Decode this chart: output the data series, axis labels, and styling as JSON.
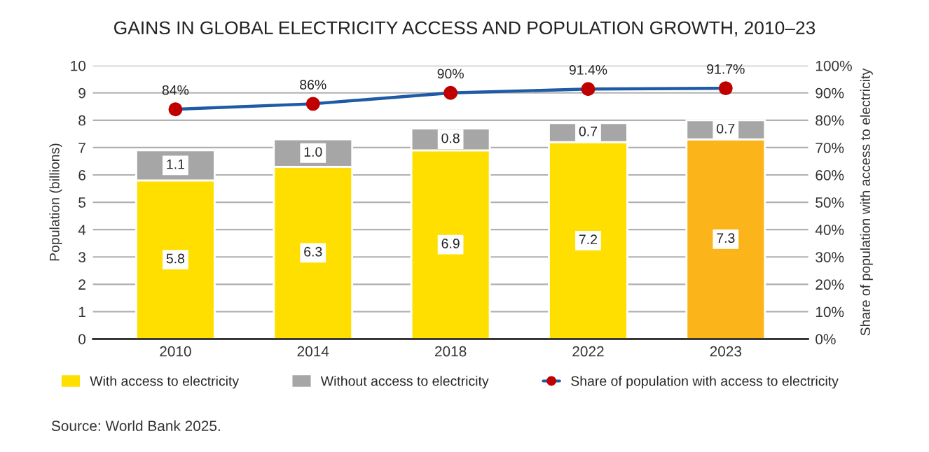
{
  "chart_data": {
    "type": "bar",
    "title": "GAINS IN GLOBAL ELECTRICITY ACCESS AND POPULATION GROWTH, 2010–23",
    "categories": [
      "2010",
      "2014",
      "2018",
      "2022",
      "2023"
    ],
    "stacked": true,
    "series": [
      {
        "name": "With access to electricity",
        "color": "#ffdf00",
        "colors": [
          "#ffdf00",
          "#ffdf00",
          "#ffdf00",
          "#ffdf00",
          "#fbb41a"
        ],
        "values": [
          5.8,
          6.3,
          6.9,
          7.2,
          7.3
        ],
        "value_labels": [
          "5.8",
          "6.3",
          "6.9",
          "7.2",
          "7.3"
        ]
      },
      {
        "name": "Without access to electricity",
        "color": "#a6a6a6",
        "values": [
          1.1,
          1.0,
          0.8,
          0.7,
          0.7
        ],
        "value_labels": [
          "1.1",
          "1.0",
          "0.8",
          "0.7",
          "0.7"
        ]
      },
      {
        "name": "Share of population with access to electricity",
        "type": "line",
        "axis": "y2",
        "color": "#1f5aa6",
        "colors": [
          "#c00000",
          "#c00000",
          "#c00000",
          "#c00000",
          "#c00000"
        ],
        "marker": "circle",
        "values": [
          84,
          86,
          90,
          91.4,
          91.7
        ],
        "value_labels": [
          "84%",
          "86%",
          "90%",
          "91.4%",
          "91.7%"
        ]
      }
    ],
    "ylabel": "Population (billions)",
    "y2label": "Share of population with access to electricity",
    "ylim": [
      0,
      10
    ],
    "yticks": [
      0,
      1,
      2,
      3,
      4,
      5,
      6,
      7,
      8,
      9,
      10
    ],
    "y2lim": [
      0,
      100
    ],
    "y2ticks": [
      {
        "value": 0,
        "label": "0%"
      },
      {
        "value": 10,
        "label": "10%"
      },
      {
        "value": 20,
        "label": "20%"
      },
      {
        "value": 30,
        "label": "30%"
      },
      {
        "value": 40,
        "label": "40%"
      },
      {
        "value": 50,
        "label": "50%"
      },
      {
        "value": 60,
        "label": "60%"
      },
      {
        "value": 70,
        "label": "70%"
      },
      {
        "value": 80,
        "label": "80%"
      },
      {
        "value": 90,
        "label": "90%"
      },
      {
        "value": 100,
        "label": "100%"
      }
    ],
    "grid": "y",
    "legend": "bottom",
    "annotations": [
      "Source: World Bank 2025."
    ]
  }
}
